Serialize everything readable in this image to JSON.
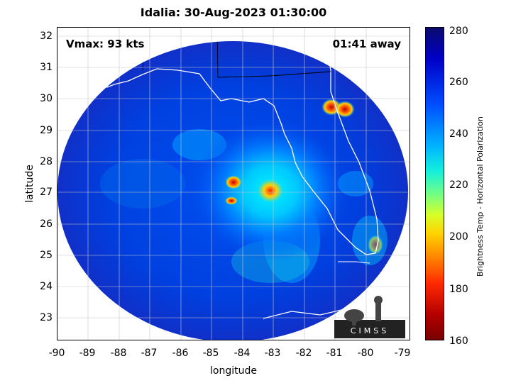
{
  "title": "Idalia: 30-Aug-2023 01:30:00",
  "overlay": {
    "vmax": "Vmax: 93 kts",
    "away": "01:41 away"
  },
  "xaxis": {
    "label": "longitude",
    "ticks": [
      "-90",
      "-89",
      "-88",
      "-87",
      "-86",
      "-85",
      "-84",
      "-83",
      "-82",
      "-81",
      "-80",
      "-79"
    ]
  },
  "yaxis": {
    "label": "latitude",
    "ticks": [
      "23",
      "24",
      "25",
      "26",
      "27",
      "28",
      "29",
      "30",
      "31",
      "32"
    ]
  },
  "colorbar": {
    "label": "Brightness Temp - Horizontal Polarization",
    "ticks": [
      "280",
      "260",
      "240",
      "220",
      "200",
      "180",
      "160"
    ]
  },
  "logo": {
    "text": "CIMSS"
  },
  "colors": {
    "cold": "#780000",
    "warm": "#0a0a6e",
    "background": "#ffffff"
  }
}
